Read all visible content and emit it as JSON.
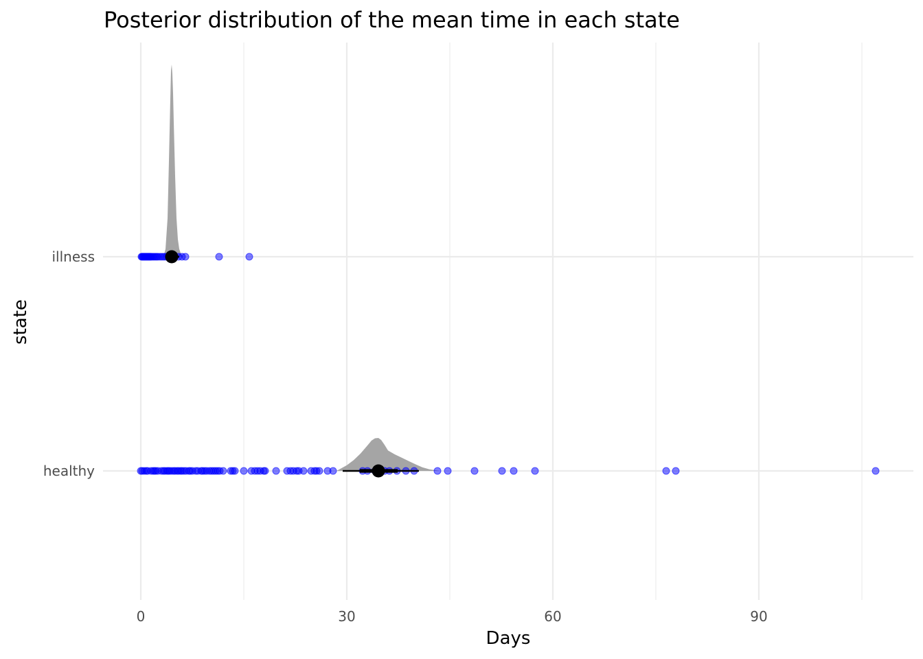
{
  "chart_data": {
    "type": "halfeye-dotplot",
    "title": "Posterior distribution of the mean time in each state",
    "xlabel": "Days",
    "ylabel": "state",
    "xlim": [
      -5.5,
      112.5
    ],
    "x_ticks": [
      0,
      30,
      60,
      90
    ],
    "grid": true,
    "legend": "none",
    "colors": {
      "points": "#0000ff",
      "density": "#a5a5a5",
      "interval": "#000000",
      "grid": "#ebebeb"
    },
    "categories": [
      "illness",
      "healthy"
    ],
    "series": [
      {
        "category": "illness",
        "observations": [
          0.1,
          0.2,
          0.3,
          0.4,
          0.5,
          0.6,
          0.7,
          0.8,
          0.9,
          1.0,
          1.1,
          1.2,
          1.3,
          1.4,
          1.5,
          1.7,
          1.9,
          2.1,
          2.3,
          2.5,
          2.8,
          3.1,
          3.4,
          3.7,
          4.0,
          4.3,
          4.6,
          5.0,
          5.5,
          6.0,
          6.5,
          11.4,
          15.8
        ],
        "posterior_density": {
          "x": [
            3.3,
            3.6,
            3.9,
            4.1,
            4.3,
            4.4,
            4.5,
            4.6,
            4.7,
            4.8,
            5.0,
            5.2,
            5.4,
            5.6,
            5.9,
            6.2
          ],
          "y": [
            0.0,
            0.04,
            0.2,
            0.5,
            0.82,
            0.97,
            1.0,
            0.95,
            0.85,
            0.7,
            0.42,
            0.2,
            0.09,
            0.04,
            0.01,
            0.0
          ]
        },
        "point_estimate": 4.5,
        "interval_66": [
          4.1,
          5.0
        ],
        "interval_95": [
          3.6,
          5.6
        ]
      },
      {
        "category": "healthy",
        "observations": [
          0.0,
          0.2,
          0.5,
          0.8,
          1.0,
          1.5,
          1.8,
          2.0,
          2.2,
          2.5,
          3.0,
          3.3,
          3.5,
          3.8,
          4.0,
          4.2,
          4.5,
          4.8,
          5.0,
          5.3,
          5.5,
          5.8,
          6.0,
          6.3,
          6.6,
          7.0,
          7.2,
          7.5,
          8.0,
          8.3,
          8.8,
          9.0,
          9.3,
          9.6,
          10.0,
          10.3,
          10.6,
          10.9,
          11.2,
          11.5,
          12.0,
          13.1,
          13.4,
          13.7,
          15.0,
          16.1,
          16.6,
          17.0,
          17.4,
          17.9,
          18.1,
          19.7,
          21.3,
          21.8,
          22.2,
          22.7,
          23.0,
          23.7,
          24.8,
          25.3,
          25.6,
          26.0,
          27.2,
          28.0,
          32.3,
          33.0,
          34.1,
          35.5,
          36.2,
          37.3,
          38.6,
          39.8,
          43.2,
          44.7,
          48.6,
          52.6,
          54.3,
          57.4,
          76.5,
          77.9,
          107.0
        ],
        "posterior_density": {
          "x": [
            28.5,
            30.0,
            31.0,
            32.0,
            33.0,
            33.6,
            34.1,
            34.6,
            35.0,
            35.5,
            36.0,
            37.0,
            38.0,
            39.0,
            40.0,
            41.0,
            42.0,
            43.5
          ],
          "y": [
            0.0,
            0.17,
            0.33,
            0.53,
            0.77,
            0.92,
            0.99,
            1.0,
            0.94,
            0.79,
            0.62,
            0.5,
            0.4,
            0.3,
            0.2,
            0.11,
            0.05,
            0.0
          ]
        },
        "point_estimate": 34.6,
        "interval_66": [
          31.9,
          37.4
        ],
        "interval_95": [
          29.4,
          40.5
        ]
      }
    ]
  }
}
